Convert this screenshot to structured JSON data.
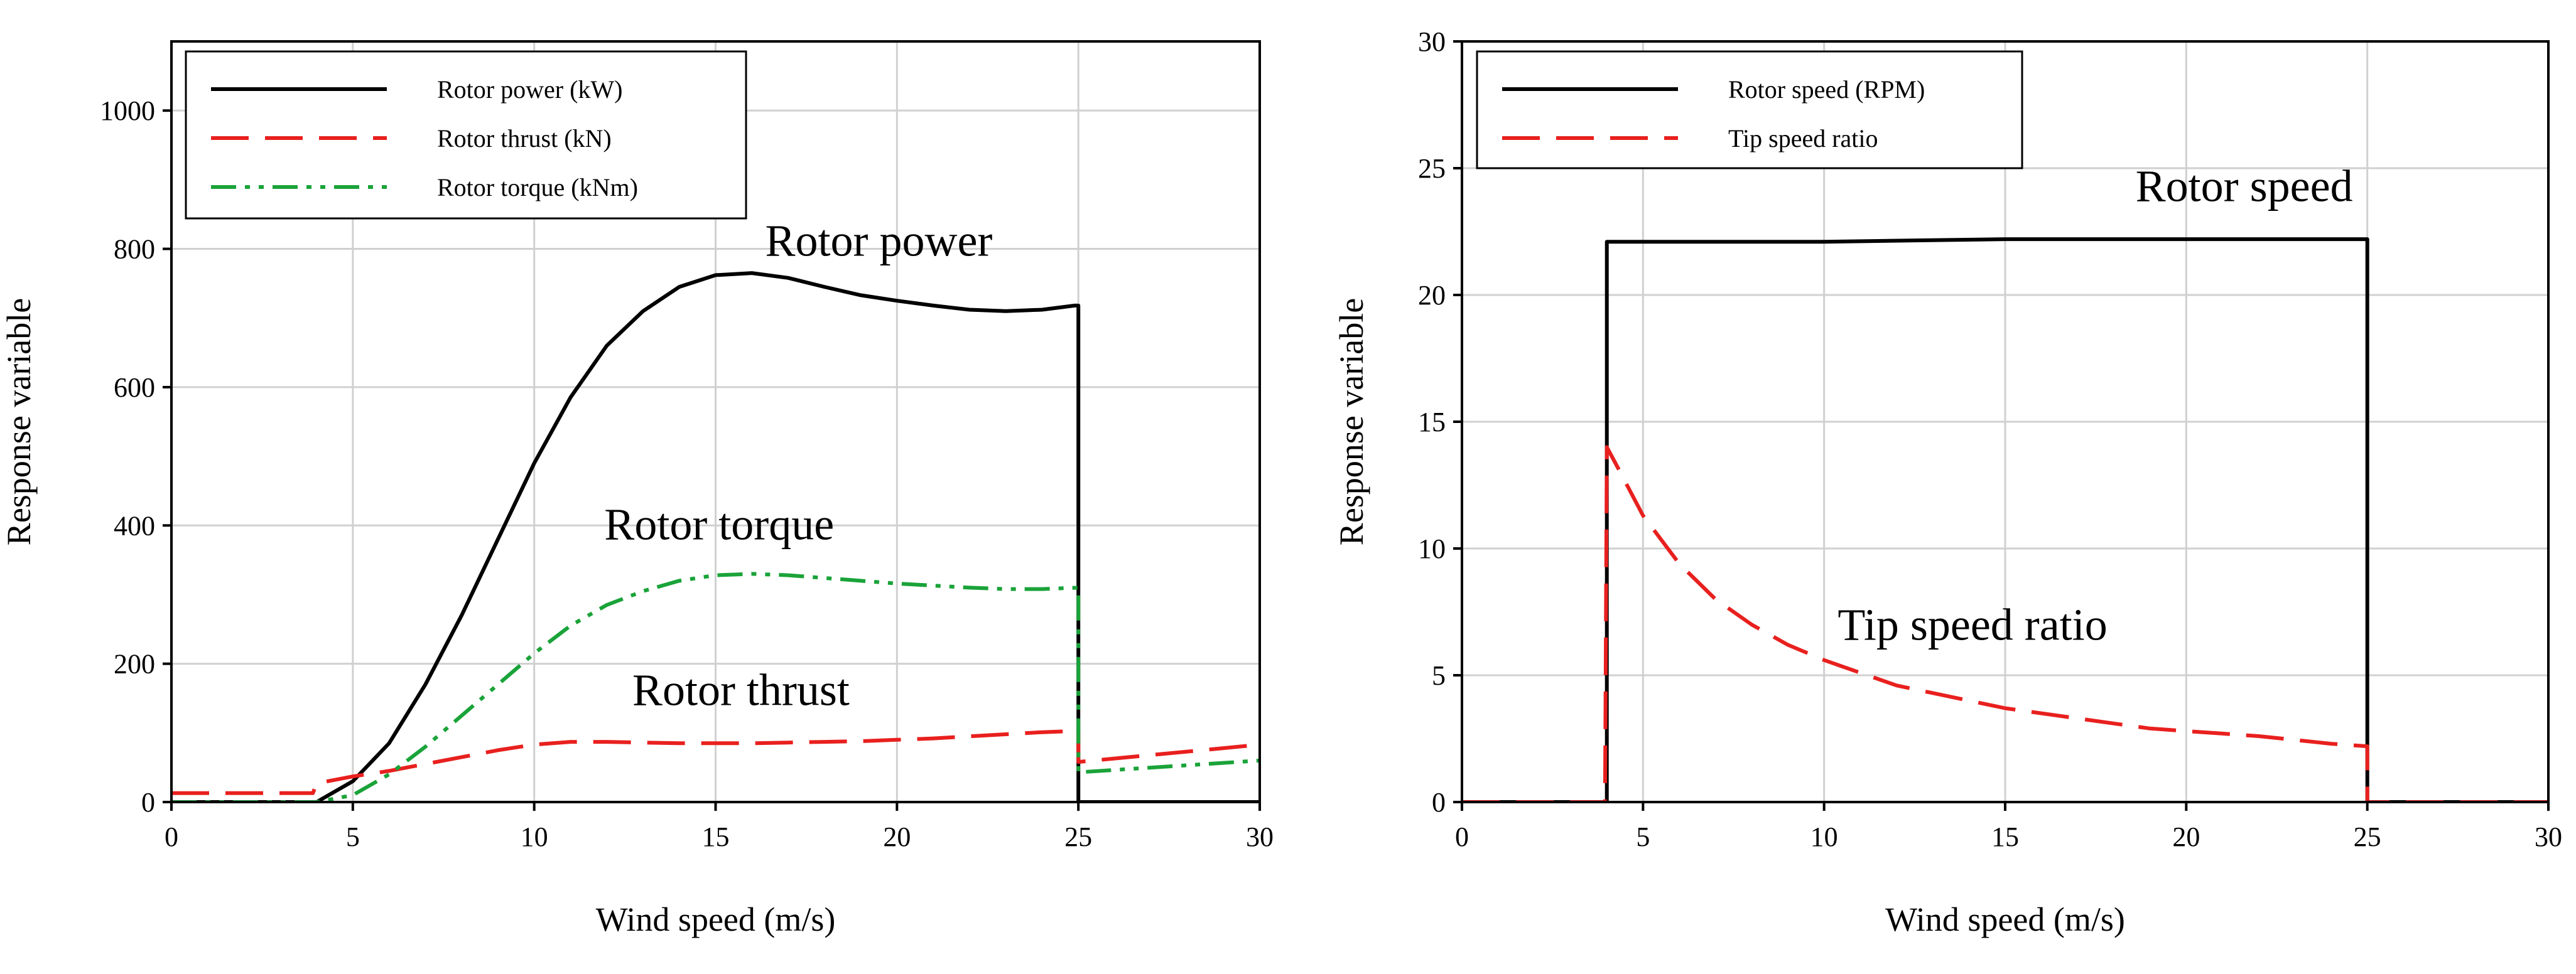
{
  "chart_data": [
    {
      "type": "line",
      "xlabel": "Wind speed (m/s)",
      "ylabel": "Response variable",
      "xlim": [
        0,
        30
      ],
      "ylim": [
        0,
        1100
      ],
      "xticks": [
        0,
        5,
        10,
        15,
        20,
        25,
        30
      ],
      "yticks": [
        0,
        200,
        400,
        600,
        800,
        1000
      ],
      "grid": true,
      "legend_position": "top-left",
      "series": [
        {
          "name": "Rotor power (kW)",
          "color": "#000000",
          "dash": "solid",
          "x": [
            0,
            4,
            5,
            6,
            7,
            8,
            9,
            10,
            11,
            12,
            13,
            14,
            15,
            16,
            17,
            18,
            19,
            20,
            21,
            22,
            23,
            24,
            24.9,
            25,
            25,
            30
          ],
          "y": [
            0,
            0,
            30,
            85,
            170,
            270,
            380,
            490,
            585,
            660,
            710,
            745,
            762,
            765,
            758,
            745,
            733,
            725,
            718,
            712,
            710,
            712,
            718,
            718,
            0,
            0
          ]
        },
        {
          "name": "Rotor thrust (kN)",
          "color": "#e8201e",
          "dash": "long",
          "x": [
            0,
            3.9,
            4,
            5,
            6,
            7,
            8,
            9,
            10,
            11,
            12,
            13,
            14,
            15,
            16,
            17,
            18,
            19,
            20,
            21,
            22,
            23,
            24,
            25,
            25,
            26,
            27,
            28,
            29,
            30
          ],
          "y": [
            13,
            13,
            27,
            37,
            45,
            55,
            65,
            75,
            83,
            87,
            87,
            86,
            85,
            85,
            85,
            86,
            87,
            88,
            90,
            92,
            95,
            98,
            101,
            103,
            58,
            63,
            68,
            73,
            78,
            83
          ]
        },
        {
          "name": "Rotor torque (kNm)",
          "color": "#1aa339",
          "dash": "dashdotdot",
          "x": [
            0,
            4,
            5,
            6,
            7,
            8,
            9,
            10,
            11,
            12,
            13,
            14,
            15,
            16,
            17,
            18,
            19,
            20,
            21,
            22,
            23,
            24,
            25,
            25,
            30
          ],
          "y": [
            0,
            0,
            10,
            40,
            80,
            125,
            170,
            215,
            255,
            285,
            305,
            320,
            328,
            330,
            328,
            324,
            320,
            316,
            313,
            310,
            308,
            308,
            310,
            43,
            60
          ]
        }
      ],
      "annotations": [
        {
          "text": "Rotor power",
          "x": 19.5,
          "y": 790
        },
        {
          "text": "Rotor torque",
          "x": 15.1,
          "y": 380
        },
        {
          "text": "Rotor thrust",
          "x": 15.7,
          "y": 140
        }
      ]
    },
    {
      "type": "line",
      "xlabel": "Wind speed (m/s)",
      "ylabel": "Response variable",
      "xlim": [
        0,
        30
      ],
      "ylim": [
        0,
        30
      ],
      "xticks": [
        0,
        5,
        10,
        15,
        20,
        25,
        30
      ],
      "yticks": [
        0,
        5,
        10,
        15,
        20,
        25,
        30
      ],
      "grid": true,
      "legend_position": "top-left",
      "series": [
        {
          "name": "Rotor speed (RPM)",
          "color": "#000000",
          "dash": "solid",
          "x": [
            0,
            4,
            4,
            10,
            15,
            20,
            25,
            25,
            30
          ],
          "y": [
            0,
            0,
            22.1,
            22.1,
            22.2,
            22.2,
            22.2,
            0,
            0
          ]
        },
        {
          "name": "Tip speed ratio",
          "color": "#e8201e",
          "dash": "long",
          "x": [
            0,
            3.95,
            4,
            4.3,
            5,
            6,
            7,
            8,
            9,
            10,
            11,
            12,
            13,
            14,
            15,
            16,
            17,
            18,
            19,
            20,
            21,
            22,
            23,
            24,
            25,
            25,
            30
          ],
          "y": [
            0,
            0,
            14.0,
            13.2,
            11.3,
            9.4,
            8.0,
            7.0,
            6.2,
            5.6,
            5.1,
            4.6,
            4.3,
            4.0,
            3.7,
            3.5,
            3.3,
            3.1,
            2.9,
            2.8,
            2.7,
            2.6,
            2.45,
            2.3,
            2.2,
            0,
            0
          ]
        }
      ],
      "annotations": [
        {
          "text": "Rotor speed",
          "x": 21.6,
          "y": 23.7
        },
        {
          "text": "Tip speed ratio",
          "x": 14.1,
          "y": 6.4
        }
      ]
    }
  ]
}
